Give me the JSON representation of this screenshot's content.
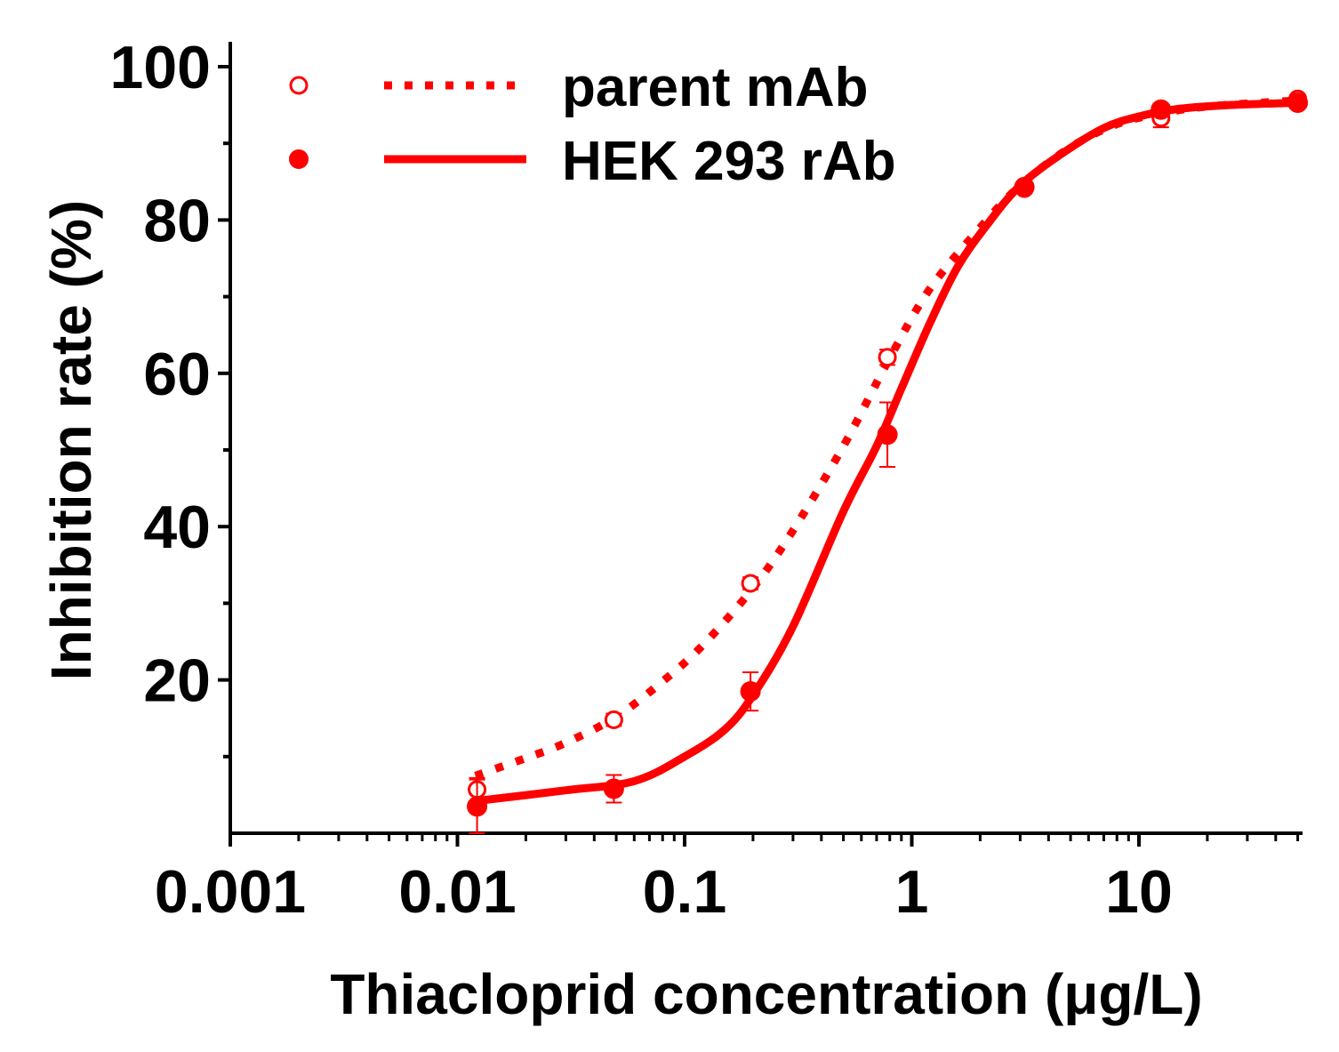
{
  "chart_data": {
    "type": "scatter",
    "title": "",
    "xlabel": "Thiacloprid concentration (μg/L)",
    "ylabel": "Inhibition rate (%)",
    "x_scale": "log",
    "xlim": [
      0.001,
      50
    ],
    "ylim": [
      0,
      100
    ],
    "x_ticks": [
      0.001,
      0.01,
      0.1,
      1,
      10
    ],
    "x_tick_labels": [
      "0.001",
      "0.01",
      "0.1",
      "1",
      "10"
    ],
    "y_ticks": [
      20,
      40,
      60,
      80,
      100
    ],
    "y_tick_labels": [
      "20",
      "40",
      "60",
      "80",
      "100"
    ],
    "grid": false,
    "legend_position": "top-left",
    "color": "#ff0000",
    "series": [
      {
        "name": "parent mAb",
        "marker": "open-circle",
        "line_style": "dotted",
        "points": [
          {
            "x": 0.0122,
            "y": 5.7,
            "err": 1.5
          },
          {
            "x": 0.0488,
            "y": 14.8,
            "err": 0.8
          },
          {
            "x": 0.195,
            "y": 32.6,
            "err": 0.8
          },
          {
            "x": 0.781,
            "y": 62.1,
            "err": 1.0
          },
          {
            "x": 3.13,
            "y": 84.1,
            "err": 0.6
          },
          {
            "x": 12.5,
            "y": 93.3,
            "err": 1.2
          },
          {
            "x": 50,
            "y": 95.8,
            "err": 0.5
          }
        ],
        "fit_curve": [
          [
            0.012,
            7.5
          ],
          [
            0.02,
            9.8
          ],
          [
            0.03,
            11.8
          ],
          [
            0.05,
            15.2
          ],
          [
            0.08,
            19.8
          ],
          [
            0.12,
            24.5
          ],
          [
            0.2,
            32.0
          ],
          [
            0.3,
            39.5
          ],
          [
            0.5,
            50.5
          ],
          [
            0.8,
            62.0
          ],
          [
            1.2,
            71.0
          ],
          [
            2.0,
            79.0
          ],
          [
            3.0,
            84.5
          ],
          [
            5.0,
            89.5
          ],
          [
            8.0,
            92.5
          ],
          [
            12,
            93.8
          ],
          [
            20,
            94.8
          ],
          [
            50,
            95.6
          ]
        ]
      },
      {
        "name": "HEK 293 rAb",
        "marker": "filled-circle",
        "line_style": "solid",
        "points": [
          {
            "x": 0.0122,
            "y": 3.5,
            "err": 3.5
          },
          {
            "x": 0.0488,
            "y": 5.8,
            "err": 1.8
          },
          {
            "x": 0.195,
            "y": 18.5,
            "err": 2.5
          },
          {
            "x": 0.781,
            "y": 52.0,
            "err": 4.2
          },
          {
            "x": 3.13,
            "y": 84.3,
            "err": 0.7
          },
          {
            "x": 12.5,
            "y": 94.4,
            "err": 0.5
          },
          {
            "x": 50,
            "y": 95.3,
            "err": 0.3
          }
        ],
        "fit_curve": [
          [
            0.012,
            4.2
          ],
          [
            0.03,
            5.6
          ],
          [
            0.06,
            6.8
          ],
          [
            0.1,
            10.0
          ],
          [
            0.15,
            13.5
          ],
          [
            0.2,
            18.0
          ],
          [
            0.3,
            27.0
          ],
          [
            0.5,
            42.0
          ],
          [
            0.7,
            50.5
          ],
          [
            0.9,
            58.0
          ],
          [
            1.2,
            66.5
          ],
          [
            1.6,
            74.0
          ],
          [
            2.2,
            79.8
          ],
          [
            3.0,
            84.5
          ],
          [
            4.5,
            88.5
          ],
          [
            7.0,
            92.0
          ],
          [
            10,
            93.5
          ],
          [
            15,
            94.5
          ],
          [
            25,
            95.0
          ],
          [
            50,
            95.3
          ]
        ]
      }
    ]
  }
}
